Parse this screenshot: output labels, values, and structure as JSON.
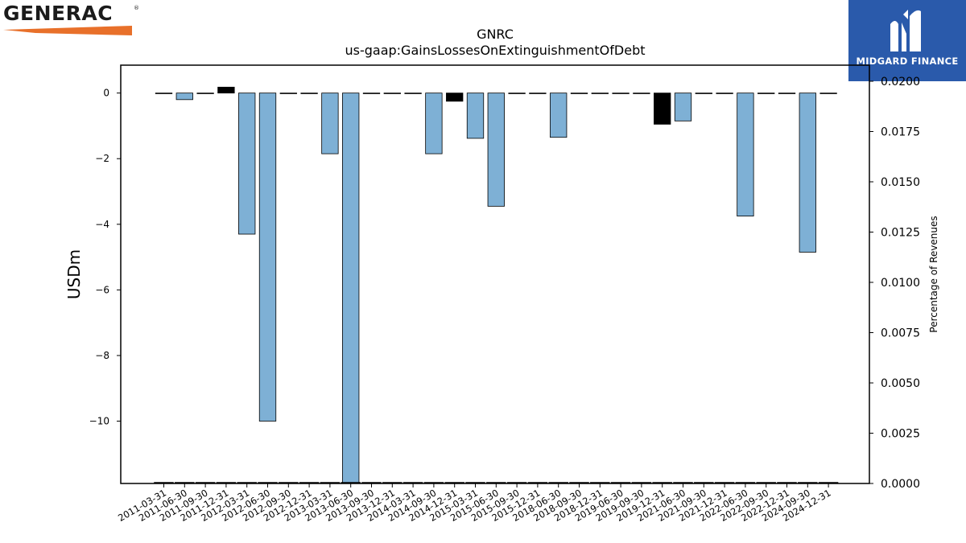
{
  "logos": {
    "left_brand": "GENERAC",
    "left_brand_mark": "®",
    "right_brand": "MIDGARD FINANCE",
    "left_accent_color": "#e8702a",
    "right_bg_color": "#2a5aab"
  },
  "chart_data": {
    "type": "bar",
    "title": "GNRC",
    "subtitle": "us-gaap:GainsLossesOnExtinguishmentOfDebt",
    "ylabel": "USDm",
    "ylabel_right": "Percentage of Revenues",
    "ylim": [
      -11.9,
      0.85
    ],
    "yticks": [
      0,
      -2,
      -4,
      -6,
      -8,
      -10
    ],
    "ylim_right": [
      0,
      0.02
    ],
    "yticks_right": [
      "0.0000",
      "0.0025",
      "0.0050",
      "0.0075",
      "0.0100",
      "0.0125",
      "0.0150",
      "0.0175",
      "0.0200"
    ],
    "categories": [
      "2011-03-31",
      "2011-06-30",
      "2011-09-30",
      "2011-12-31",
      "2012-03-31",
      "2012-06-30",
      "2012-09-30",
      "2012-12-31",
      "2013-03-31",
      "2013-06-30",
      "2013-09-30",
      "2013-12-31",
      "2014-03-31",
      "2014-09-30",
      "2014-12-31",
      "2015-03-31",
      "2015-06-30",
      "2015-09-30",
      "2015-12-31",
      "2018-06-30",
      "2018-09-30",
      "2018-12-31",
      "2019-06-30",
      "2019-09-30",
      "2019-12-31",
      "2021-06-30",
      "2021-09-30",
      "2021-12-31",
      "2022-06-30",
      "2022-09-30",
      "2022-12-31",
      "2024-09-30",
      "2024-12-31"
    ],
    "values": [
      0,
      -0.2,
      0,
      0.18,
      -4.3,
      -10.0,
      0,
      0,
      -1.85,
      -12.1,
      0,
      0,
      0,
      -1.85,
      -0.25,
      -1.38,
      -3.45,
      0,
      0,
      -1.35,
      0,
      0,
      0,
      0,
      -0.95,
      -0.85,
      0,
      0,
      -3.75,
      0,
      0,
      -4.85,
      0
    ],
    "highlight": [
      false,
      false,
      false,
      true,
      false,
      false,
      false,
      false,
      false,
      false,
      false,
      false,
      false,
      false,
      true,
      false,
      false,
      false,
      false,
      false,
      false,
      false,
      false,
      false,
      true,
      false,
      false,
      false,
      false,
      false,
      false,
      false,
      false
    ],
    "bar_color": "#7eb0d5",
    "highlight_color": "#000000",
    "grid": false
  }
}
